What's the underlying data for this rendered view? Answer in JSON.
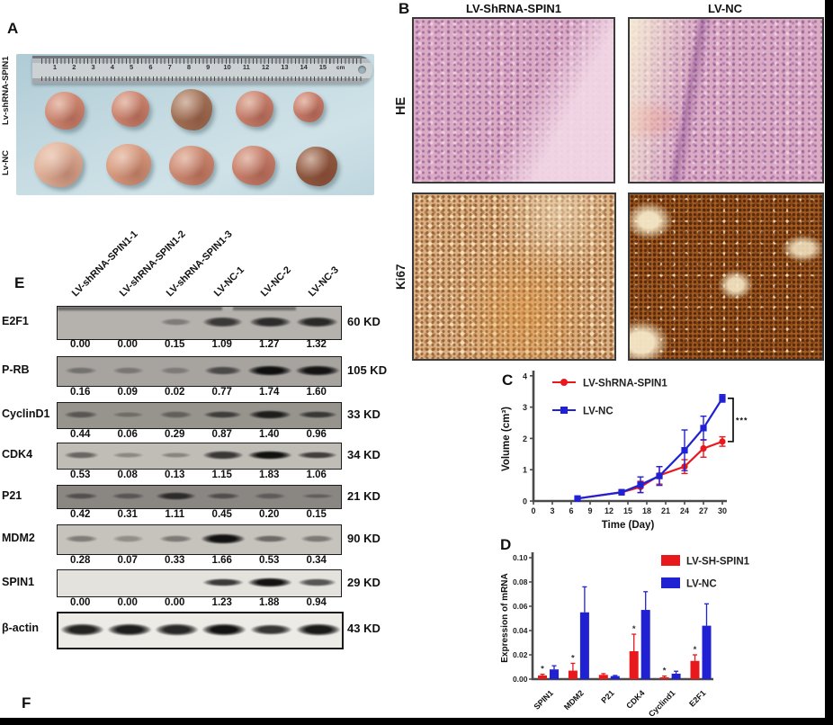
{
  "panels": {
    "A": {
      "label": "A",
      "row_labels": [
        "Lv-shRNA-SPIN1",
        "Lv-NC"
      ],
      "ruler_numbers": [
        "1",
        "2",
        "3",
        "4",
        "5",
        "6",
        "7",
        "8",
        "9",
        "10",
        "11",
        "12",
        "13",
        "14",
        "15"
      ],
      "ruler_unit": "cm"
    },
    "B": {
      "label": "B",
      "col_headers": [
        "LV-ShRNA-SPIN1",
        "LV-NC"
      ],
      "row_headers": [
        "HE",
        "Ki67"
      ]
    },
    "C": {
      "label": "C"
    },
    "D": {
      "label": "D"
    },
    "E": {
      "label": "E",
      "lane_labels": [
        "LV-shRNA-SPIN1-1",
        "LV-shRNA-SPIN1-2",
        "LV-shRNA-SPIN1-3",
        "LV-NC-1",
        "LV-NC-2",
        "LV-NC-3"
      ],
      "rows": [
        {
          "protein": "E2F1",
          "kd": "60 KD",
          "values": [
            "0.00",
            "0.00",
            "0.15",
            "1.09",
            "1.27",
            "1.32"
          ]
        },
        {
          "protein": "P-RB",
          "kd": "105 KD",
          "values": [
            "0.16",
            "0.09",
            "0.02",
            "0.77",
            "1.74",
            "1.60"
          ]
        },
        {
          "protein": "CyclinD1",
          "kd": "33 KD",
          "values": [
            "0.44",
            "0.06",
            "0.29",
            "0.87",
            "1.40",
            "0.96"
          ]
        },
        {
          "protein": "CDK4",
          "kd": "34 KD",
          "values": [
            "0.53",
            "0.08",
            "0.13",
            "1.15",
            "1.83",
            "1.06"
          ]
        },
        {
          "protein": "P21",
          "kd": "21 KD",
          "values": [
            "0.42",
            "0.31",
            "1.11",
            "0.45",
            "0.20",
            "0.15"
          ]
        },
        {
          "protein": "MDM2",
          "kd": "90 KD",
          "values": [
            "0.28",
            "0.07",
            "0.33",
            "1.66",
            "0.53",
            "0.34"
          ]
        },
        {
          "protein": "SPIN1",
          "kd": "29 KD",
          "values": [
            "0.00",
            "0.00",
            "0.00",
            "1.23",
            "1.88",
            "0.94"
          ]
        },
        {
          "protein": "β-actin",
          "kd": "43 KD",
          "values": []
        }
      ]
    },
    "F": {
      "label": "F"
    }
  },
  "colors": {
    "red": "#e8191d",
    "blue": "#2121d4"
  },
  "chart_data": [
    {
      "type": "line",
      "panel": "C",
      "xlabel": "Time (Day)",
      "ylabel": "Volume (cm³)",
      "xlim": [
        0,
        30
      ],
      "ylim": [
        0,
        4
      ],
      "xticks": [
        0,
        3,
        6,
        9,
        12,
        15,
        18,
        21,
        24,
        27,
        30
      ],
      "yticks": [
        0,
        1,
        2,
        3,
        4
      ],
      "x": [
        7,
        14,
        17,
        20,
        24,
        27,
        30
      ],
      "series": [
        {
          "name": "LV-ShRNA-SPIN1",
          "color": "#e8191d",
          "marker": "circle",
          "values": [
            0.08,
            0.28,
            0.45,
            0.82,
            1.1,
            1.68,
            1.9
          ],
          "err": [
            0.04,
            0.08,
            0.18,
            0.28,
            0.22,
            0.28,
            0.15
          ]
        },
        {
          "name": "LV-NC",
          "color": "#2121d4",
          "marker": "square",
          "values": [
            0.08,
            0.28,
            0.52,
            0.8,
            1.62,
            2.33,
            3.28
          ],
          "err": [
            0.04,
            0.08,
            0.25,
            0.3,
            0.65,
            0.38,
            0.12
          ]
        }
      ],
      "significance": "***",
      "legend_position": "top-left",
      "grid": false
    },
    {
      "type": "bar",
      "panel": "D",
      "ylabel": "Expression of mRNA",
      "ylim": [
        0,
        0.1
      ],
      "yticks": [
        "0.00",
        "0.02",
        "0.04",
        "0.06",
        "0.08",
        "0.10"
      ],
      "categories": [
        "SPIN1",
        "MDM2",
        "P21",
        "CDK4",
        "Cyclind1",
        "E2F1"
      ],
      "series": [
        {
          "name": "LV-SH-SPIN1",
          "color": "#e8191d",
          "values": [
            0.003,
            0.007,
            0.0035,
            0.023,
            0.0015,
            0.015
          ],
          "err": [
            0.001,
            0.006,
            0.001,
            0.014,
            0.001,
            0.005
          ],
          "sig": [
            "*",
            "*",
            "",
            "*",
            "*",
            "*"
          ]
        },
        {
          "name": "LV-NC",
          "color": "#2121d4",
          "values": [
            0.008,
            0.055,
            0.0025,
            0.057,
            0.0045,
            0.044
          ],
          "err": [
            0.003,
            0.021,
            0.0005,
            0.015,
            0.002,
            0.018
          ],
          "sig": [
            "",
            "",
            "",
            "",
            "",
            ""
          ]
        }
      ],
      "legend_position": "top-right",
      "grid": false
    }
  ]
}
